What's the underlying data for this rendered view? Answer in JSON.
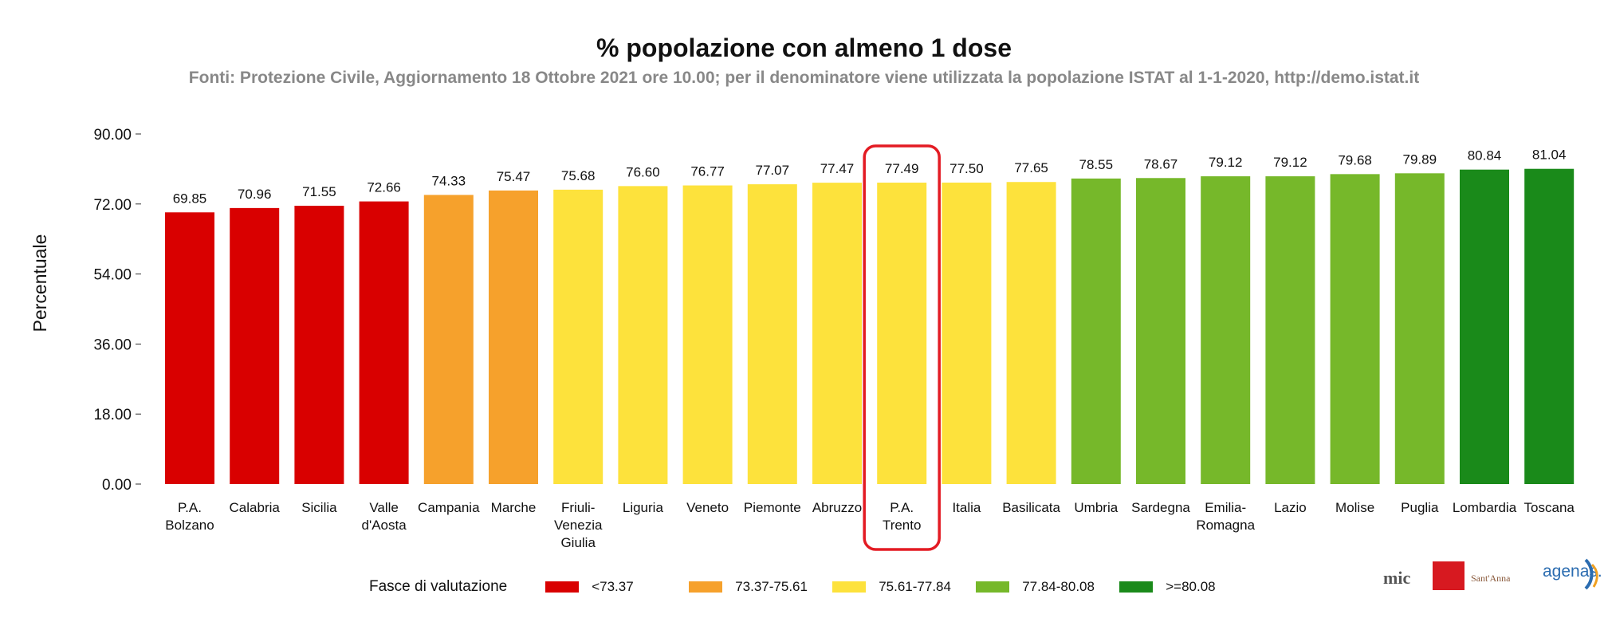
{
  "chart_data": {
    "type": "bar",
    "title": "% popolazione con almeno 1 dose",
    "subtitle": "Fonti: Protezione Civile, Aggiornamento 18 Ottobre 2021 ore 10.00; per il denominatore viene utilizzata la popolazione ISTAT al 1-1-2020, http://demo.istat.it",
    "ylabel": "Percentuale",
    "xlabel": "",
    "ylim": [
      0,
      90
    ],
    "yticks": [
      "0.00",
      "18.00",
      "36.00",
      "54.00",
      "72.00",
      "90.00"
    ],
    "grid": false,
    "categories": [
      [
        "P.A.",
        "Bolzano"
      ],
      [
        "Calabria"
      ],
      [
        "Sicilia"
      ],
      [
        "Valle",
        "d'Aosta"
      ],
      [
        "Campania"
      ],
      [
        "Marche"
      ],
      [
        "Friuli-",
        "Venezia",
        "Giulia"
      ],
      [
        "Liguria"
      ],
      [
        "Veneto"
      ],
      [
        "Piemonte"
      ],
      [
        "Abruzzo"
      ],
      [
        "P.A.",
        "Trento"
      ],
      [
        "Italia"
      ],
      [
        "Basilicata"
      ],
      [
        "Umbria"
      ],
      [
        "Sardegna"
      ],
      [
        "Emilia-",
        "Romagna"
      ],
      [
        "Lazio"
      ],
      [
        "Molise"
      ],
      [
        "Puglia"
      ],
      [
        "Lombardia"
      ],
      [
        "Toscana"
      ]
    ],
    "values": [
      69.85,
      70.96,
      71.55,
      72.66,
      74.33,
      75.47,
      75.68,
      76.6,
      76.77,
      77.07,
      77.47,
      77.49,
      77.5,
      77.65,
      78.55,
      78.67,
      79.12,
      79.12,
      79.68,
      79.89,
      80.84,
      81.04
    ],
    "value_labels": [
      "69.85",
      "70.96",
      "71.55",
      "72.66",
      "74.33",
      "75.47",
      "75.68",
      "76.60",
      "76.77",
      "77.07",
      "77.47",
      "77.49",
      "77.50",
      "77.65",
      "78.55",
      "78.67",
      "79.12",
      "79.12",
      "79.68",
      "79.89",
      "80.84",
      "81.04"
    ],
    "bar_classes": [
      0,
      0,
      0,
      0,
      1,
      1,
      2,
      2,
      2,
      2,
      2,
      2,
      2,
      2,
      3,
      3,
      3,
      3,
      3,
      3,
      4,
      4
    ],
    "highlighted_index": 11,
    "highlight_color": "#e31b23",
    "legend": {
      "title": "Fasce di valutazione",
      "placement": "bottom",
      "items": [
        {
          "label": "<73.37",
          "color": "#d90000"
        },
        {
          "label": "73.37-75.61",
          "color": "#f6a12c"
        },
        {
          "label": "75.61-77.84",
          "color": "#fde23c"
        },
        {
          "label": "77.84-80.08",
          "color": "#76b82a"
        },
        {
          "label": ">=80.08",
          "color": "#1a8a1a"
        }
      ]
    }
  },
  "logos": {
    "mic": "mic",
    "santanna": "Sant'Anna",
    "agenas": "agenas."
  }
}
